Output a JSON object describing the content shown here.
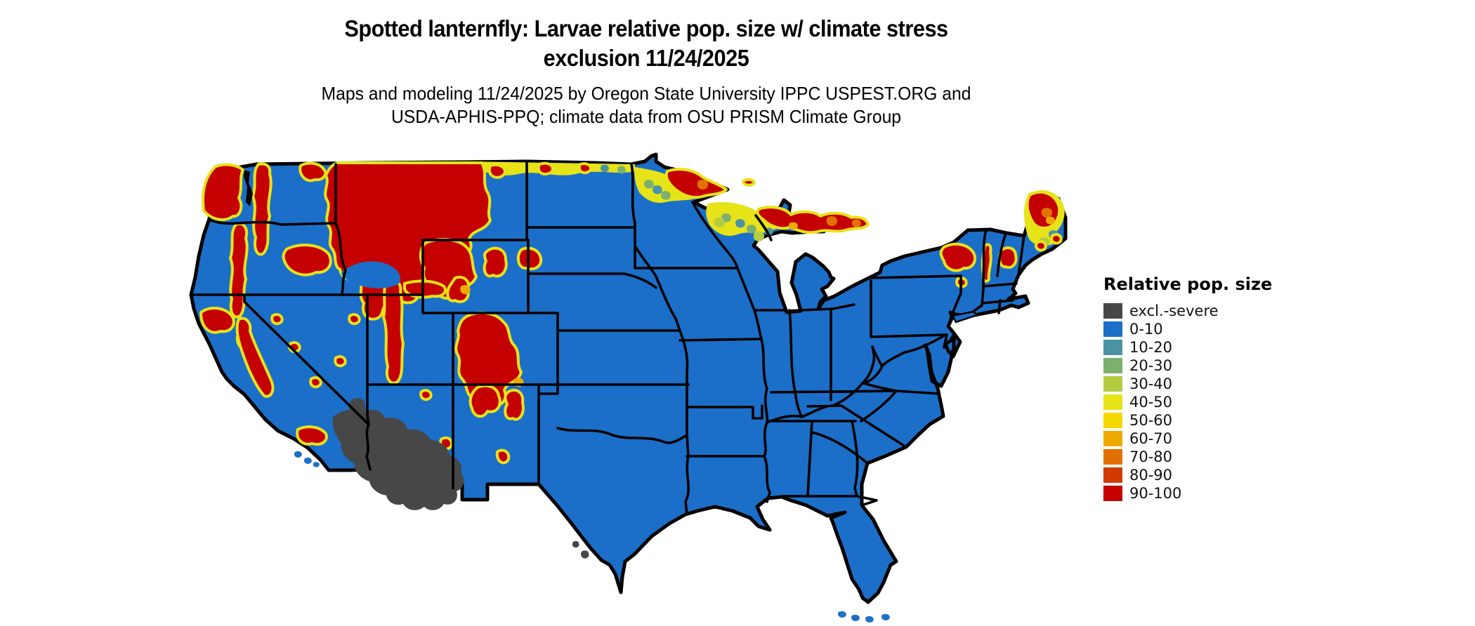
{
  "header": {
    "title_line1": "Spotted lanternfly: Larvae relative pop. size w/ climate stress",
    "title_line2": "exclusion 11/24/2025",
    "subtitle_line1": "Maps and modeling 11/24/2025 by Oregon State University IPPC USPEST.ORG and",
    "subtitle_line2": "USDA-APHIS-PPQ; climate data from OSU PRISM Climate Group"
  },
  "legend": {
    "title": "Relative pop. size",
    "items": [
      {
        "label": "excl.-severe",
        "color": "#474747"
      },
      {
        "label": "0-10",
        "color": "#1B6FC9"
      },
      {
        "label": "10-20",
        "color": "#4B93A2"
      },
      {
        "label": "20-30",
        "color": "#7BB06E"
      },
      {
        "label": "30-40",
        "color": "#B4CC41"
      },
      {
        "label": "40-50",
        "color": "#E6E319"
      },
      {
        "label": "50-60",
        "color": "#F5D800"
      },
      {
        "label": "60-70",
        "color": "#EFAA02"
      },
      {
        "label": "70-80",
        "color": "#E37102"
      },
      {
        "label": "80-90",
        "color": "#D23A03"
      },
      {
        "label": "90-100",
        "color": "#C50000"
      }
    ]
  },
  "map": {
    "region": "Contiguous United States",
    "style": "raster choropleth with black state borders on white background",
    "base_class": "0-10",
    "base_color": "#1B6FC9",
    "border_color": "#000000",
    "water_color": "#ffffff",
    "notable_regions": [
      {
        "region": "Western Washington coast and Cascades",
        "class": "90-100"
      },
      {
        "region": "Idaho / western Montana Rockies",
        "class": "90-100"
      },
      {
        "region": "Yellowstone and Wyoming ranges",
        "class": "90-100"
      },
      {
        "region": "Sierra Nevada, California",
        "class": "90-100"
      },
      {
        "region": "Wasatch and Uinta ranges, Utah",
        "class": "90-100"
      },
      {
        "region": "Colorado Rockies into northern New Mexico",
        "class": "90-100"
      },
      {
        "region": "Black Hills, South Dakota",
        "class": "90-100"
      },
      {
        "region": "Northern border strip of Montana / North Dakota",
        "class": "40-60"
      },
      {
        "region": "Northern Minnesota arrowhead",
        "class": "60-100"
      },
      {
        "region": "Upper Peninsula of Michigan",
        "class": "60-100"
      },
      {
        "region": "Adirondacks, New York",
        "class": "90-100"
      },
      {
        "region": "Green and White Mountains, VT / NH",
        "class": "80-100"
      },
      {
        "region": "Northern Maine",
        "class": "90-100"
      },
      {
        "region": "Sonoran / Mojave deserts (SE California, S Nevada, S Arizona)",
        "class": "excl.-severe"
      },
      {
        "region": "Central, southern and eastern United States",
        "class": "0-10"
      }
    ]
  }
}
